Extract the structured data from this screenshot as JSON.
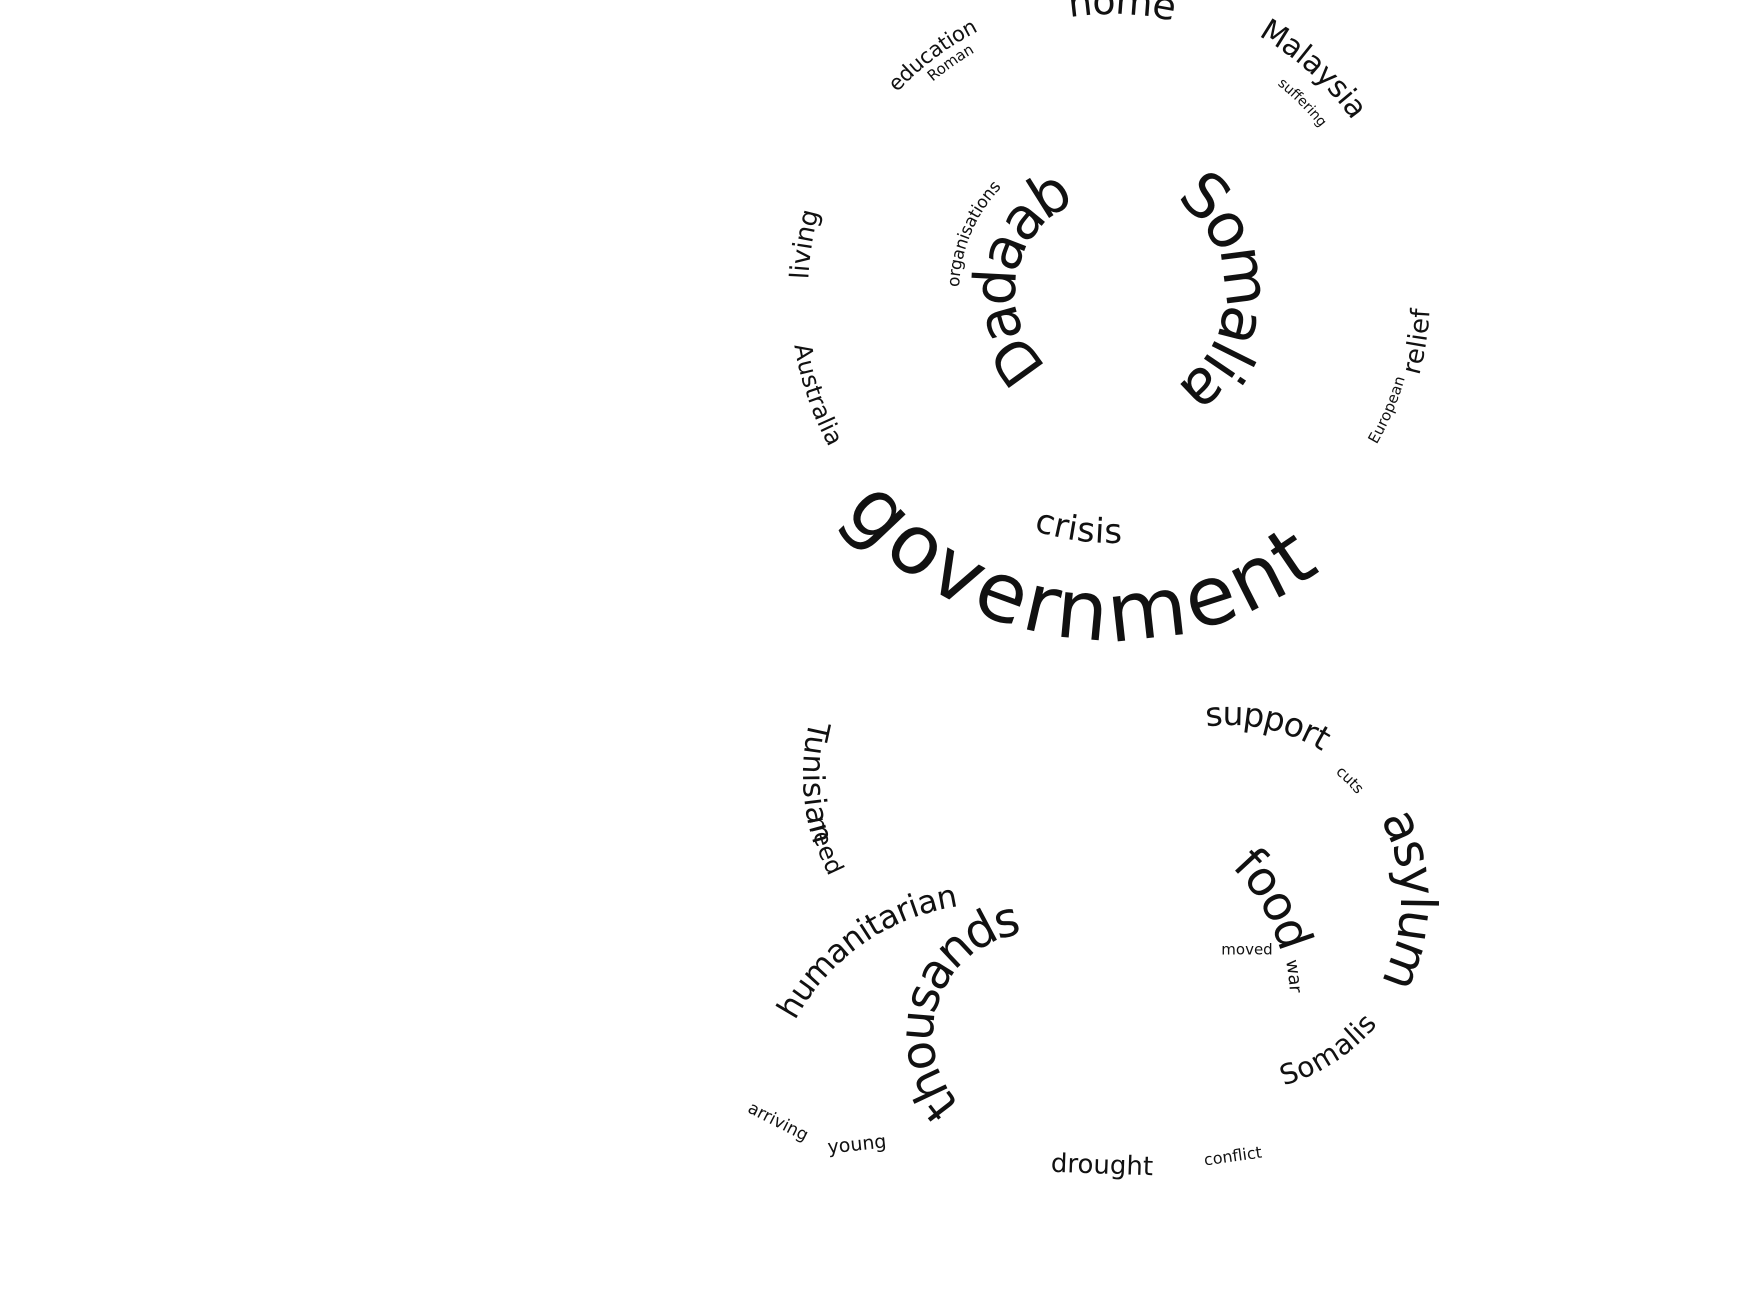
{
  "page": {
    "background": "#ffffff",
    "text_color": "#111111"
  },
  "cloud": {
    "words": [
      {
        "id": "government",
        "text": "government",
        "weight": 1.0
      },
      {
        "id": "somalia",
        "text": "Somalia",
        "weight": 0.9
      },
      {
        "id": "dadaab",
        "text": "Dadaab",
        "weight": 0.88
      },
      {
        "id": "asylum",
        "text": "asylum",
        "weight": 0.68
      },
      {
        "id": "food",
        "text": "food",
        "weight": 0.68
      },
      {
        "id": "thousands",
        "text": "thousands",
        "weight": 0.62
      },
      {
        "id": "home",
        "text": "home",
        "weight": 0.52
      },
      {
        "id": "malaysia",
        "text": "Malaysia",
        "weight": 0.5
      },
      {
        "id": "crisis",
        "text": "crisis",
        "weight": 0.5
      },
      {
        "id": "support",
        "text": "support",
        "weight": 0.46
      },
      {
        "id": "humanitarian",
        "text": "humanitarian",
        "weight": 0.46
      },
      {
        "id": "tunisian",
        "text": "Tunisian",
        "weight": 0.44
      },
      {
        "id": "relief",
        "text": "relief",
        "weight": 0.38
      },
      {
        "id": "living",
        "text": "living",
        "weight": 0.38
      },
      {
        "id": "somalis",
        "text": "Somalis",
        "weight": 0.38
      },
      {
        "id": "australia",
        "text": "Australia",
        "weight": 0.36
      },
      {
        "id": "need",
        "text": "need",
        "weight": 0.36
      },
      {
        "id": "drought",
        "text": "drought",
        "weight": 0.34
      },
      {
        "id": "education",
        "text": "education",
        "weight": 0.3
      },
      {
        "id": "organisations",
        "text": "organisations",
        "weight": 0.22
      },
      {
        "id": "european",
        "text": "European",
        "weight": 0.22
      },
      {
        "id": "war",
        "text": "war",
        "weight": 0.22
      },
      {
        "id": "arriving",
        "text": "arriving",
        "weight": 0.22
      },
      {
        "id": "young",
        "text": "young",
        "weight": 0.24
      },
      {
        "id": "roman",
        "text": "Roman",
        "weight": 0.2
      },
      {
        "id": "suffering",
        "text": "suffering",
        "weight": 0.2
      },
      {
        "id": "cuts",
        "text": "cuts",
        "weight": 0.18
      },
      {
        "id": "moved",
        "text": "moved",
        "weight": 0.2
      },
      {
        "id": "conflict",
        "text": "conflict",
        "weight": 0.2
      }
    ]
  }
}
